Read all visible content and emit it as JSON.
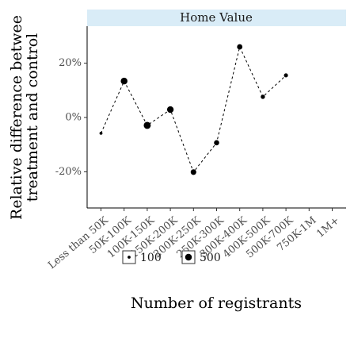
{
  "chart_data": {
    "type": "line",
    "facet_title": "Home Value",
    "x_label": "Number of registrants",
    "y_label": [
      "Relative difference betwee",
      "treatment and control"
    ],
    "categories": [
      "Less than 50K",
      "50K-100K",
      "100K-150K",
      "150K-200K",
      "200K-250K",
      "250K-300K",
      "300K-400K",
      "400K-500K",
      "500K-700K",
      "750K-1M",
      "1M+"
    ],
    "values": [
      -5.8,
      13.4,
      -2.9,
      2.9,
      -20.1,
      -9.3,
      26.0,
      7.6,
      15.5,
      null,
      null
    ],
    "sizes": [
      100,
      500,
      550,
      480,
      350,
      300,
      320,
      200,
      180,
      null,
      null
    ],
    "color": "#000000",
    "line_dashed": true,
    "ylim": [
      -33.3,
      33.6
    ],
    "yticks": [
      {
        "value": -20,
        "label": "-20%"
      },
      {
        "value": 0,
        "label": "0%"
      },
      {
        "value": 20,
        "label": "20%"
      }
    ],
    "size_legend": {
      "values": [
        100,
        500
      ],
      "position": "bottom"
    }
  }
}
